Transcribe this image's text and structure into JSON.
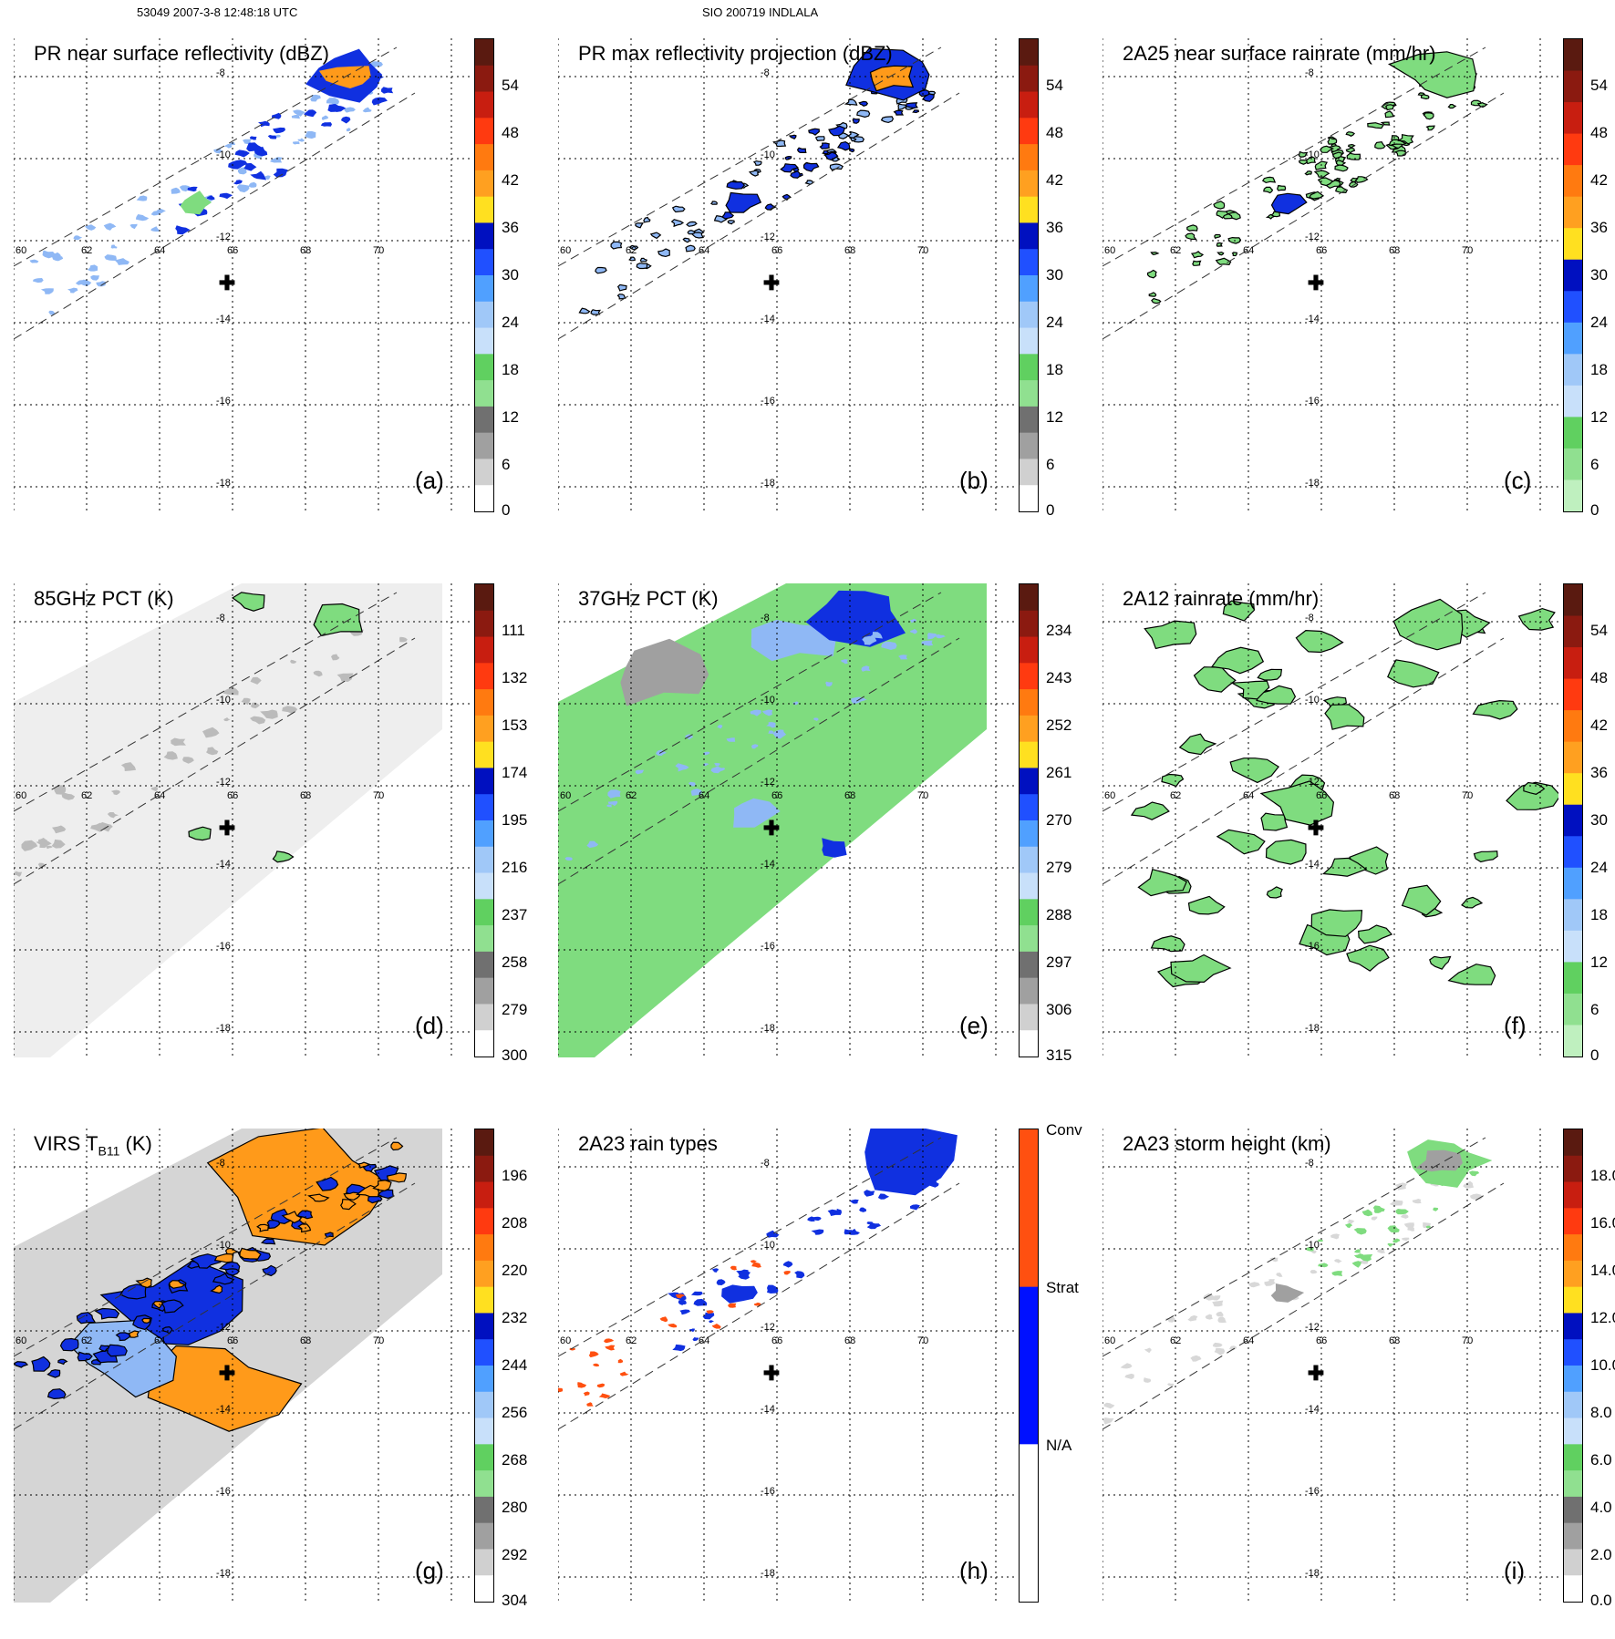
{
  "header": {
    "left": "53049 2007-3-8 12:48:18 UTC",
    "center": "SIO 200719 INDLALA"
  },
  "lon_labels": [
    "60",
    "62",
    "64",
    "66",
    "68",
    "70"
  ],
  "lat_labels": [
    "-8",
    "-10",
    "-12",
    "-14",
    "-16",
    "-18"
  ],
  "colors": {
    "green": "#7fdc7f",
    "blue": "#1030e0",
    "lightblue": "#8fb8f5",
    "orange": "#ff9a1a",
    "gray": "#a0a0a0",
    "lightgray": "#d8d8d8"
  },
  "panels": [
    {
      "id": "a",
      "title": "PR near surface reflectivity (dBZ)",
      "label": "(a)",
      "ticks": [
        "54",
        "48",
        "42",
        "36",
        "30",
        "24",
        "18",
        "12",
        "6",
        "0"
      ],
      "scale": "dbz"
    },
    {
      "id": "b",
      "title": "PR max reflectivity projection (dBZ)",
      "label": "(b)",
      "ticks": [
        "54",
        "48",
        "42",
        "36",
        "30",
        "24",
        "18",
        "12",
        "6",
        "0"
      ],
      "scale": "dbz"
    },
    {
      "id": "c",
      "title": "2A25 near surface rainrate (mm/hr)",
      "label": "(c)",
      "ticks": [
        "54",
        "48",
        "42",
        "36",
        "30",
        "24",
        "18",
        "12",
        "6",
        "0"
      ],
      "scale": "rain"
    },
    {
      "id": "d",
      "title": "85GHz PCT (K)",
      "label": "(d)",
      "ticks": [
        "111",
        "132",
        "153",
        "174",
        "195",
        "216",
        "237",
        "258",
        "279",
        "300"
      ],
      "scale": "tb"
    },
    {
      "id": "e",
      "title": "37GHz PCT (K)",
      "label": "(e)",
      "ticks": [
        "234",
        "243",
        "252",
        "261",
        "270",
        "279",
        "288",
        "297",
        "306",
        "315"
      ],
      "scale": "tb"
    },
    {
      "id": "f",
      "title": "2A12 rainrate (mm/hr)",
      "label": "(f)",
      "ticks": [
        "54",
        "48",
        "42",
        "36",
        "30",
        "24",
        "18",
        "12",
        "6",
        "0"
      ],
      "scale": "rain"
    },
    {
      "id": "g",
      "title_main": "VIRS T",
      "title_sub": "B11",
      "title_tail": " (K)",
      "label": "(g)",
      "ticks": [
        "196",
        "208",
        "220",
        "232",
        "244",
        "256",
        "268",
        "280",
        "292",
        "304"
      ],
      "scale": "tb"
    },
    {
      "id": "h",
      "title": "2A23 rain types",
      "label": "(h)",
      "ticks": [
        "Conv",
        "Strat",
        "N/A"
      ],
      "scale": "types"
    },
    {
      "id": "i",
      "title": "2A23 storm height (km)",
      "label": "(i)",
      "ticks": [
        "18.0",
        "16.0",
        "14.0",
        "12.0",
        "10.0",
        "8.0",
        "6.0",
        "4.0",
        "2.0",
        "0.0"
      ],
      "scale": "height"
    }
  ]
}
